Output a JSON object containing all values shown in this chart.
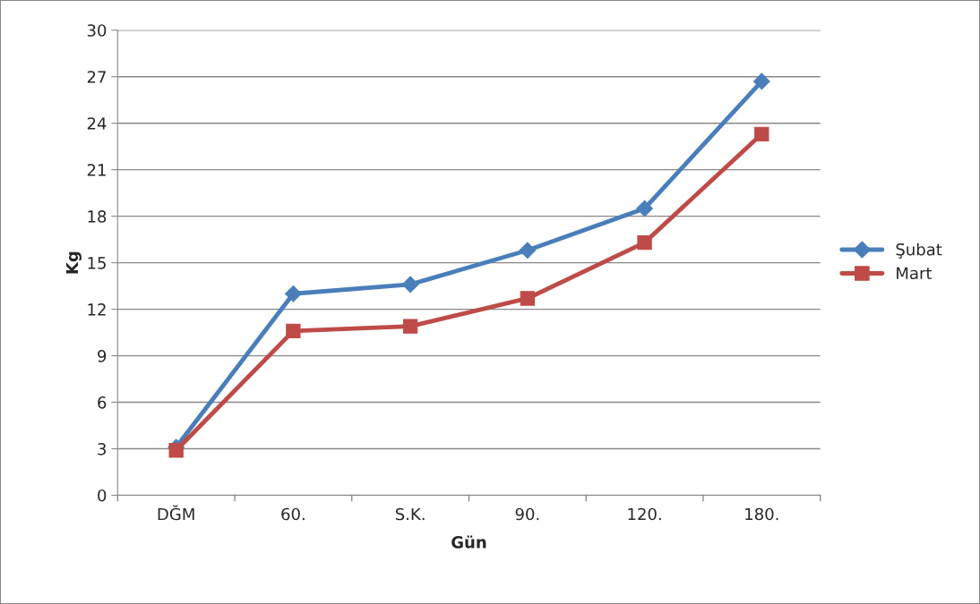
{
  "chart_data": {
    "type": "line",
    "xlabel": "Gün",
    "ylabel": "Kg",
    "categories": [
      "DĞM",
      "60.",
      "S.K.",
      "90.",
      "120.",
      "180."
    ],
    "series": [
      {
        "name": "Şubat",
        "color": "#4a7ebb",
        "marker": "diamond",
        "values": [
          3.1,
          13.0,
          13.6,
          15.8,
          18.5,
          26.7
        ]
      },
      {
        "name": "Mart",
        "color": "#be4b48",
        "marker": "square",
        "values": [
          2.9,
          10.6,
          10.9,
          12.7,
          16.3,
          23.3
        ]
      }
    ],
    "ylim": [
      0,
      30
    ],
    "yticks": [
      0,
      3,
      6,
      9,
      12,
      15,
      18,
      21,
      24,
      27,
      30
    ],
    "grid": "y",
    "legend": "right",
    "line_style": "solid"
  }
}
